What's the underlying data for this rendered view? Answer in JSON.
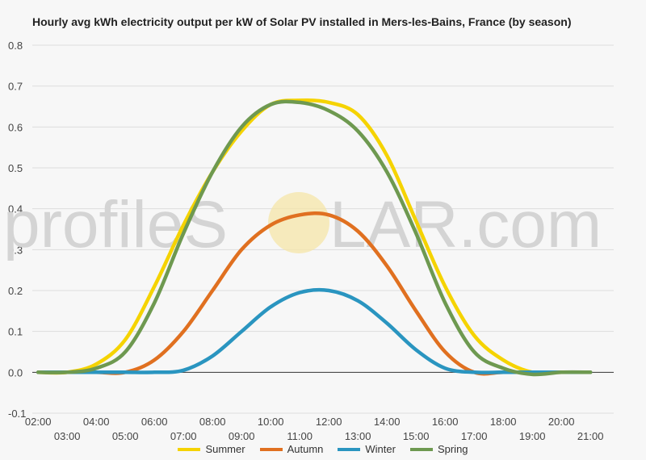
{
  "title": "Hourly avg kWh electricity output per kW of Solar PV installed in Mers-les-Bains, France (by season)",
  "watermark": {
    "text_left": "profileS",
    "text_right": "LAR.com",
    "sun_color": "#f5e6a8"
  },
  "chart_data": {
    "type": "line",
    "title": "Hourly avg kWh electricity output per kW of Solar PV installed in Mers-les-Bains, France (by season)",
    "xlabel": "",
    "ylabel": "",
    "x": [
      2,
      3,
      4,
      5,
      6,
      7,
      8,
      9,
      10,
      11,
      12,
      13,
      14,
      15,
      16,
      17,
      18,
      19,
      20,
      21
    ],
    "x_ticks": [
      "02:00",
      "03:00",
      "04:00",
      "05:00",
      "06:00",
      "07:00",
      "08:00",
      "09:00",
      "10:00",
      "11:00",
      "12:00",
      "13:00",
      "14:00",
      "15:00",
      "16:00",
      "17:00",
      "18:00",
      "19:00",
      "20:00",
      "21:00"
    ],
    "ylim": [
      -0.1,
      0.8
    ],
    "y_ticks": [
      -0.1,
      0.0,
      0.1,
      0.2,
      0.3,
      0.4,
      0.5,
      0.6,
      0.7,
      0.8
    ],
    "y_tick_labels": [
      "-0.1",
      "0.0",
      "0.1",
      "0.2",
      "0.3",
      "0.4",
      "0.5",
      "0.6",
      "0.7",
      "0.8"
    ],
    "grid": true,
    "legend_position": "bottom",
    "series": [
      {
        "name": "Summer",
        "color": "#f5d300",
        "values": [
          0.0,
          0.0,
          0.02,
          0.08,
          0.21,
          0.36,
          0.49,
          0.59,
          0.655,
          0.665,
          0.66,
          0.63,
          0.53,
          0.37,
          0.21,
          0.09,
          0.03,
          0.0,
          0.0,
          0.0
        ]
      },
      {
        "name": "Autumn",
        "color": "#e07020",
        "values": [
          0.0,
          0.0,
          0.0,
          0.0,
          0.03,
          0.1,
          0.2,
          0.3,
          0.36,
          0.385,
          0.385,
          0.345,
          0.26,
          0.15,
          0.05,
          0.0,
          0.0,
          0.0,
          0.0,
          0.0
        ]
      },
      {
        "name": "Winter",
        "color": "#2a95c0",
        "values": [
          0.0,
          0.0,
          0.0,
          0.0,
          0.0,
          0.005,
          0.04,
          0.1,
          0.16,
          0.195,
          0.2,
          0.175,
          0.12,
          0.055,
          0.01,
          0.0,
          0.0,
          0.0,
          0.0,
          0.0
        ]
      },
      {
        "name": "Spring",
        "color": "#6e9950",
        "values": [
          0.0,
          0.0,
          0.01,
          0.05,
          0.17,
          0.34,
          0.49,
          0.6,
          0.655,
          0.66,
          0.64,
          0.59,
          0.49,
          0.34,
          0.17,
          0.05,
          0.01,
          -0.005,
          0.0,
          0.0
        ]
      }
    ]
  }
}
